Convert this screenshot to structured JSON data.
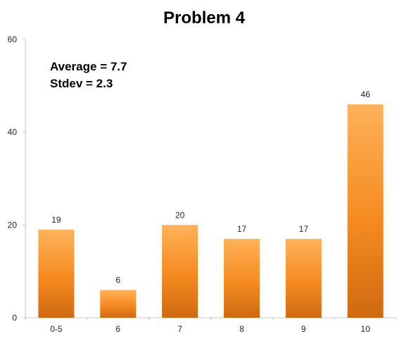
{
  "chart_data": {
    "type": "bar",
    "title": "Problem 4",
    "categories": [
      "0-5",
      "6",
      "7",
      "8",
      "9",
      "10"
    ],
    "values": [
      19,
      6,
      20,
      17,
      17,
      46
    ],
    "ylim": [
      0,
      60
    ],
    "yticks": [
      0,
      20,
      40,
      60
    ],
    "xlabel": "",
    "ylabel": "",
    "annotations": [
      "Average = 7.7",
      "Stdev = 2.3"
    ],
    "grid": false,
    "legend": "none",
    "bar_gradient": [
      "#ffb25a",
      "#f58a1f",
      "#cf6a12"
    ],
    "axis_color": "#c8c8c8"
  }
}
